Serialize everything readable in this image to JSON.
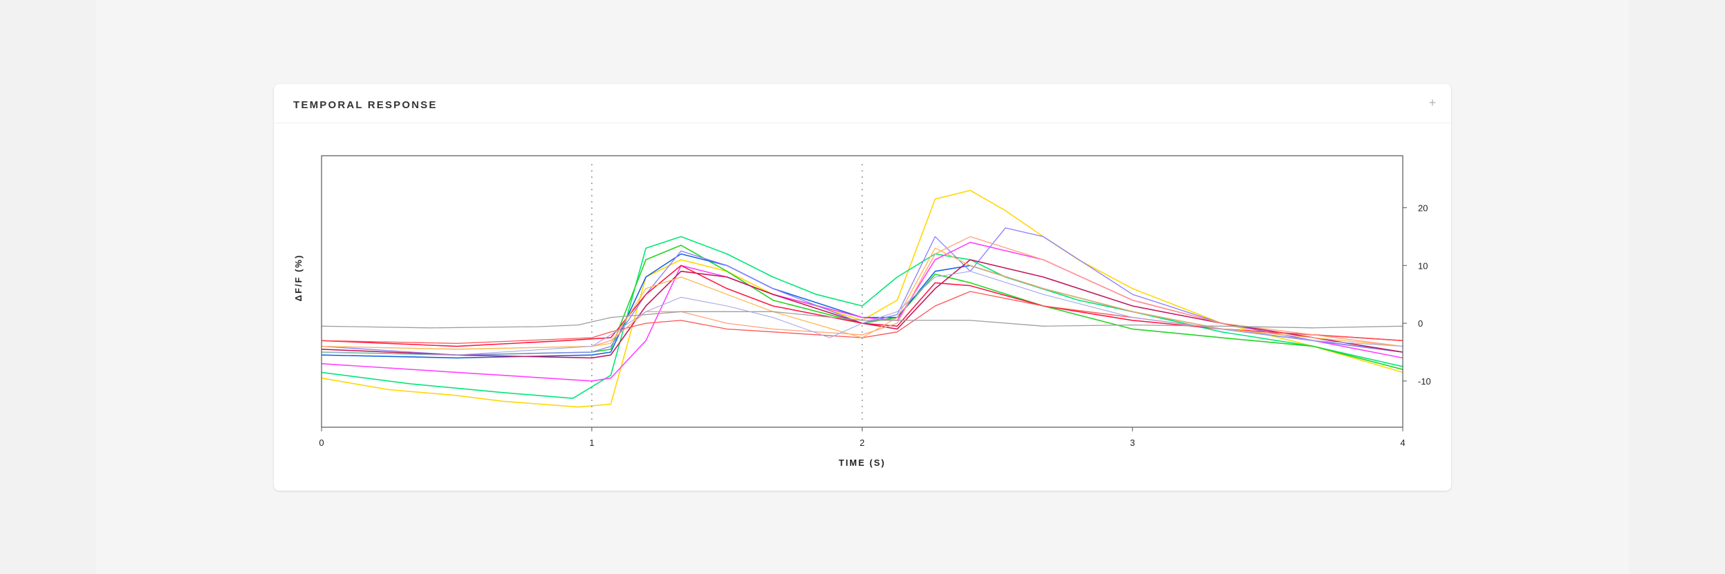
{
  "panel": {
    "title": "TEMPORAL RESPONSE",
    "expand_icon": "plus-icon"
  },
  "chart_data": {
    "type": "line",
    "title": "TEMPORAL RESPONSE",
    "xlabel": "TIME (S)",
    "ylabel": "ΔF/F (%)",
    "xlim": [
      0,
      4
    ],
    "ylim": [
      -18,
      29
    ],
    "x_ticks": [
      "0",
      "1",
      "2",
      "3",
      "4"
    ],
    "x_tick_values": [
      0,
      1,
      2,
      3,
      4
    ],
    "y_ticks": [
      "-10",
      "0",
      "10",
      "20"
    ],
    "y_tick_values": [
      -10,
      0,
      10,
      20
    ],
    "y_axis_side": "right",
    "reference_lines_x": [
      1,
      2
    ],
    "grid": false,
    "legend": "none",
    "series": [
      {
        "color": "#FFD700",
        "width": 1.6,
        "x": [
          0,
          0.25,
          0.5,
          0.67,
          0.95,
          1.07,
          1.2,
          1.33,
          1.5,
          1.67,
          1.83,
          2.0,
          2.13,
          2.27,
          2.4,
          2.53,
          2.67,
          2.8,
          3.0,
          3.33,
          3.67,
          4.0
        ],
        "y": [
          -9.5,
          -11.5,
          -12.5,
          -13.5,
          -14.5,
          -14,
          8,
          11,
          9,
          5,
          3,
          0.5,
          4,
          21.5,
          23,
          19.5,
          15,
          11,
          6,
          0,
          -4,
          -8.5
        ]
      },
      {
        "color": "#00E676",
        "width": 1.6,
        "x": [
          0,
          0.33,
          0.67,
          0.93,
          1.07,
          1.2,
          1.33,
          1.5,
          1.67,
          1.83,
          2.0,
          2.13,
          2.27,
          2.4,
          2.53,
          2.8,
          3.0,
          3.33,
          3.67,
          4.0
        ],
        "y": [
          -8.5,
          -10.5,
          -12,
          -13,
          -9,
          13,
          15,
          12,
          8,
          5,
          3,
          8,
          12,
          11,
          8,
          4,
          2,
          -1.5,
          -4,
          -7.5
        ]
      },
      {
        "color": "#22D422",
        "width": 1.6,
        "x": [
          0,
          0.5,
          1.0,
          1.07,
          1.2,
          1.33,
          1.5,
          1.67,
          2.0,
          2.13,
          2.27,
          2.4,
          2.67,
          3.0,
          3.33,
          3.67,
          4.0
        ],
        "y": [
          -5,
          -5.5,
          -5,
          -4.5,
          11,
          13.5,
          9,
          4,
          0,
          1,
          8.5,
          7,
          3,
          -1,
          -2.5,
          -4,
          -8
        ]
      },
      {
        "color": "#1565E0",
        "width": 1.6,
        "x": [
          0,
          0.5,
          1.0,
          1.07,
          1.2,
          1.33,
          1.5,
          1.67,
          2.0,
          2.13,
          2.27,
          2.4,
          2.67,
          3.0,
          3.33,
          3.67,
          4.0
        ],
        "y": [
          -5.5,
          -6,
          -5.5,
          -5,
          8,
          12,
          10,
          6,
          1,
          1,
          9,
          10,
          6,
          2,
          -1,
          -3,
          -5
        ]
      },
      {
        "color": "#FF40FF",
        "width": 1.6,
        "x": [
          0,
          0.5,
          1.0,
          1.07,
          1.2,
          1.33,
          1.5,
          1.67,
          2.0,
          2.13,
          2.27,
          2.4,
          2.67,
          3.0,
          3.33,
          3.67,
          4.0
        ],
        "y": [
          -7,
          -8.5,
          -10,
          -9.5,
          -3,
          10,
          8,
          5,
          1,
          0.5,
          11,
          14,
          11,
          4,
          0,
          -3,
          -6
        ]
      },
      {
        "color": "#8A7CFF",
        "width": 1.3,
        "x": [
          0,
          0.5,
          1.0,
          1.07,
          1.2,
          1.33,
          1.5,
          1.67,
          2.0,
          2.13,
          2.27,
          2.4,
          2.53,
          2.67,
          3.0,
          3.33,
          3.67,
          4.0
        ],
        "y": [
          -4,
          -5.5,
          -5,
          -4,
          5,
          12.5,
          10,
          6,
          0,
          1.5,
          15,
          9,
          16.5,
          15,
          5,
          0,
          -3,
          -5
        ]
      },
      {
        "color": "#C2185B",
        "width": 1.6,
        "x": [
          0,
          0.5,
          1.0,
          1.07,
          1.2,
          1.33,
          1.5,
          1.67,
          2.0,
          2.13,
          2.27,
          2.4,
          2.67,
          3.0,
          3.33,
          3.67,
          4.0
        ],
        "y": [
          -4.5,
          -5.5,
          -6,
          -5.5,
          3,
          9,
          8,
          5,
          0,
          -1,
          6,
          11,
          8,
          3,
          0,
          -2.5,
          -5
        ]
      },
      {
        "color": "#FF1744",
        "width": 1.6,
        "x": [
          0,
          0.5,
          0.9,
          1.07,
          1.2,
          1.33,
          1.5,
          1.67,
          2.0,
          2.13,
          2.27,
          2.4,
          2.67,
          3.0,
          3.33,
          3.67,
          4.0
        ],
        "y": [
          -3,
          -4,
          -3,
          -2.5,
          5,
          10,
          6,
          3,
          0,
          -0.5,
          7,
          6.5,
          3,
          0.5,
          -1,
          -2,
          -3
        ]
      },
      {
        "color": "#FF5252",
        "width": 1.3,
        "x": [
          0,
          0.5,
          1.0,
          1.07,
          1.2,
          1.33,
          1.5,
          1.67,
          2.0,
          2.13,
          2.27,
          2.4,
          2.67,
          3.0,
          3.33,
          3.67,
          4.0
        ],
        "y": [
          -3,
          -3.5,
          -2.5,
          -1.5,
          0,
          0.5,
          -1,
          -1.5,
          -2.5,
          -1.5,
          3,
          5.5,
          3,
          1,
          -1,
          -2,
          -3
        ]
      },
      {
        "color": "#FFA07A",
        "width": 1.3,
        "x": [
          0,
          0.5,
          1.0,
          1.07,
          1.2,
          1.33,
          1.5,
          1.67,
          2.0,
          2.13,
          2.27,
          2.4,
          2.67,
          3.0,
          3.33,
          3.67,
          4.0
        ],
        "y": [
          -4,
          -4.5,
          -4,
          -3,
          2,
          2,
          0,
          -1,
          -2,
          0,
          12,
          15,
          11,
          4,
          0,
          -2,
          -4
        ]
      },
      {
        "color": "#FFB74D",
        "width": 1.3,
        "x": [
          0,
          0.5,
          1.0,
          1.07,
          1.2,
          1.33,
          1.5,
          1.67,
          2.0,
          2.13,
          2.27,
          2.4,
          2.67,
          3.0,
          3.33,
          3.67,
          4.0
        ],
        "y": [
          -4,
          -4.5,
          -4,
          -3.5,
          6,
          8,
          5,
          2,
          -2.5,
          1,
          13,
          10,
          6,
          2,
          -1,
          -2.5,
          -4
        ]
      },
      {
        "color": "#9E9E9E",
        "width": 1.3,
        "x": [
          0,
          0.4,
          0.8,
          0.95,
          1.07,
          1.33,
          1.67,
          2.0,
          2.4,
          2.67,
          3.0,
          3.33,
          3.67,
          4.0
        ],
        "y": [
          -0.5,
          -0.8,
          -0.6,
          -0.3,
          1,
          2,
          2,
          0.5,
          0.5,
          -0.5,
          -0.3,
          -0.5,
          -0.8,
          -0.5
        ]
      },
      {
        "color": "#A5A8E8",
        "width": 1.1,
        "x": [
          0,
          0.5,
          1.0,
          1.07,
          1.2,
          1.33,
          1.5,
          1.67,
          1.88,
          2.0,
          2.13,
          2.27,
          2.4,
          2.67,
          3.0,
          3.33,
          3.67,
          4.0
        ],
        "y": [
          -5,
          -5.5,
          -4,
          -2,
          2,
          4.5,
          3,
          1,
          -2.5,
          0,
          2,
          8,
          9,
          5,
          1,
          -1,
          -3,
          -4
        ]
      }
    ]
  }
}
